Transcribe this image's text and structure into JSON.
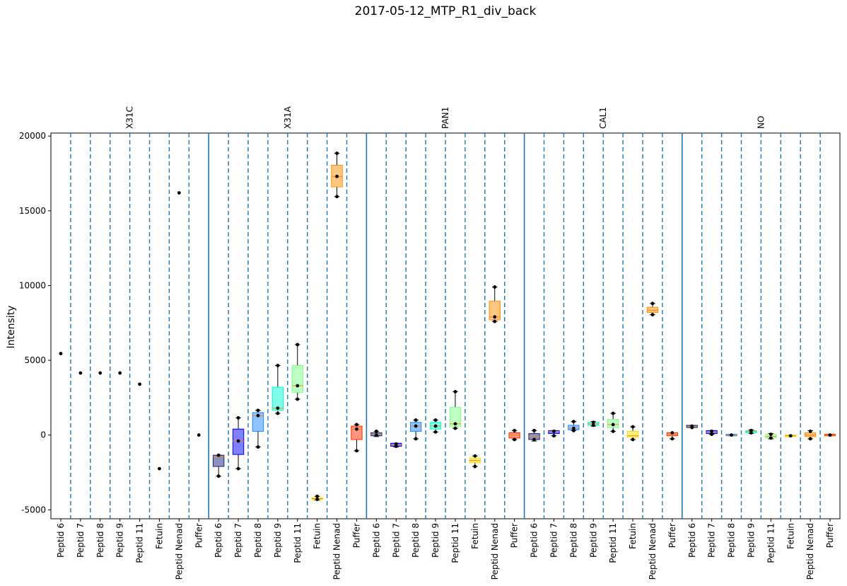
{
  "chart_data": {
    "type": "box",
    "title": "2017-05-12_MTP_R1_div_back",
    "ylabel": "Intensity",
    "xlabel": "",
    "ylim": [
      -5600,
      20200
    ],
    "yticks": [
      -5000,
      0,
      5000,
      10000,
      15000,
      20000
    ],
    "grid": false,
    "categories": [
      "Peptid 6",
      "Peptid 7",
      "Peptid 8",
      "Peptid 9",
      "Peptid 11",
      "Fetuin",
      "Peptid Nenad",
      "Puffer"
    ],
    "category_colors": [
      "#1a237e",
      "#0000ff",
      "#1e88ff",
      "#00ffd5",
      "#7dff8a",
      "#ffe000",
      "#ff9000",
      "#ff2a00"
    ],
    "groups": [
      {
        "name": "X31C",
        "boxes": [
          {
            "category": "Peptid 6",
            "q1": 5450,
            "median": 5450,
            "q3": 5450,
            "whislo": 5450,
            "whishi": 5450,
            "points": [
              5450
            ]
          },
          {
            "category": "Peptid 7",
            "q1": 4150,
            "median": 4150,
            "q3": 4150,
            "whislo": 4150,
            "whishi": 4150,
            "points": [
              4150
            ]
          },
          {
            "category": "Peptid 8",
            "q1": 4150,
            "median": 4150,
            "q3": 4150,
            "whislo": 4150,
            "whishi": 4150,
            "points": [
              4150
            ]
          },
          {
            "category": "Peptid 9",
            "q1": 4150,
            "median": 4150,
            "q3": 4150,
            "whislo": 4150,
            "whishi": 4150,
            "points": [
              4150
            ]
          },
          {
            "category": "Peptid 11",
            "q1": 3400,
            "median": 3400,
            "q3": 3400,
            "whislo": 3400,
            "whishi": 3400,
            "points": [
              3400
            ]
          },
          {
            "category": "Fetuin",
            "q1": -2250,
            "median": -2250,
            "q3": -2250,
            "whislo": -2250,
            "whishi": -2250,
            "points": [
              -2250
            ]
          },
          {
            "category": "Peptid Nenad",
            "q1": 16200,
            "median": 16200,
            "q3": 16200,
            "whislo": 16200,
            "whishi": 16200,
            "points": [
              16200
            ]
          },
          {
            "category": "Puffer",
            "q1": 0,
            "median": 0,
            "q3": 0,
            "whislo": 0,
            "whishi": 0,
            "points": [
              0
            ]
          }
        ]
      },
      {
        "name": "X31A",
        "boxes": [
          {
            "category": "Peptid 6",
            "q1": -2100,
            "median": -1450,
            "q3": -1350,
            "whislo": -2750,
            "whishi": -1350,
            "points": [
              -1350,
              -2750
            ]
          },
          {
            "category": "Peptid 7",
            "q1": -1300,
            "median": -400,
            "q3": 400,
            "whislo": -2250,
            "whishi": 1150,
            "points": [
              1150,
              -400,
              -2250
            ]
          },
          {
            "category": "Peptid 8",
            "q1": 250,
            "median": 1300,
            "q3": 1500,
            "whislo": -800,
            "whishi": 1650,
            "points": [
              1650,
              1300,
              -800
            ]
          },
          {
            "category": "Peptid 9",
            "q1": 1650,
            "median": 1800,
            "q3": 3200,
            "whislo": 1450,
            "whishi": 4650,
            "points": [
              4650,
              1800,
              1450
            ]
          },
          {
            "category": "Peptid 11",
            "q1": 2850,
            "median": 3300,
            "q3": 4650,
            "whislo": 2400,
            "whishi": 6050,
            "points": [
              6050,
              3300,
              2400
            ]
          },
          {
            "category": "Fetuin",
            "q1": -4300,
            "median": -4250,
            "q3": -4200,
            "whislo": -4350,
            "whishi": -4100,
            "points": [
              -4100,
              -4300
            ]
          },
          {
            "category": "Peptid Nenad",
            "q1": 16600,
            "median": 17300,
            "q3": 18050,
            "whislo": 15950,
            "whishi": 18850,
            "points": [
              18850,
              17300,
              15950
            ]
          },
          {
            "category": "Puffer",
            "q1": -300,
            "median": 400,
            "q3": 600,
            "whislo": -1050,
            "whishi": 700,
            "points": [
              700,
              400,
              -1050
            ]
          }
        ]
      },
      {
        "name": "PAN1",
        "boxes": [
          {
            "category": "Peptid 6",
            "q1": -50,
            "median": 50,
            "q3": 150,
            "whislo": -100,
            "whishi": 250,
            "points": [
              250,
              0
            ]
          },
          {
            "category": "Peptid 7",
            "q1": -750,
            "median": -650,
            "q3": -550,
            "whislo": -800,
            "whishi": -550,
            "points": [
              -600,
              -750
            ]
          },
          {
            "category": "Peptid 8",
            "q1": 250,
            "median": 600,
            "q3": 850,
            "whislo": -250,
            "whishi": 1000,
            "points": [
              1000,
              600,
              -250
            ]
          },
          {
            "category": "Peptid 9",
            "q1": 400,
            "median": 600,
            "q3": 850,
            "whislo": 200,
            "whishi": 1000,
            "points": [
              1000,
              600,
              200
            ]
          },
          {
            "category": "Peptid 11",
            "q1": 550,
            "median": 750,
            "q3": 1850,
            "whislo": 450,
            "whishi": 2900,
            "points": [
              2900,
              750,
              450
            ]
          },
          {
            "category": "Fetuin",
            "q1": -1850,
            "median": -1700,
            "q3": -1550,
            "whislo": -2100,
            "whishi": -1400,
            "points": [
              -1400,
              -2100
            ]
          },
          {
            "category": "Peptid Nenad",
            "q1": 7700,
            "median": 7900,
            "q3": 8950,
            "whislo": 7600,
            "whishi": 9900,
            "points": [
              9900,
              7900,
              7600
            ]
          },
          {
            "category": "Puffer",
            "q1": -200,
            "median": 0,
            "q3": 150,
            "whislo": -300,
            "whishi": 300,
            "points": [
              300,
              -300
            ]
          }
        ]
      },
      {
        "name": "CAL1",
        "boxes": [
          {
            "category": "Peptid 6",
            "q1": -300,
            "median": -100,
            "q3": 100,
            "whislo": -400,
            "whishi": 300,
            "points": [
              300,
              -300
            ]
          },
          {
            "category": "Peptid 7",
            "q1": 100,
            "median": 250,
            "q3": 300,
            "whislo": -50,
            "whishi": 300,
            "points": [
              250,
              -50
            ]
          },
          {
            "category": "Peptid 8",
            "q1": 350,
            "median": 450,
            "q3": 650,
            "whislo": 300,
            "whishi": 900,
            "points": [
              900,
              450,
              300
            ]
          },
          {
            "category": "Peptid 9",
            "q1": 650,
            "median": 750,
            "q3": 850,
            "whislo": 600,
            "whishi": 900,
            "points": [
              850,
              650
            ]
          },
          {
            "category": "Peptid 11",
            "q1": 500,
            "median": 700,
            "q3": 1050,
            "whislo": 250,
            "whishi": 1450,
            "points": [
              1450,
              700,
              250
            ]
          },
          {
            "category": "Fetuin",
            "q1": -150,
            "median": -50,
            "q3": 250,
            "whislo": -300,
            "whishi": 550,
            "points": [
              550,
              -300
            ]
          },
          {
            "category": "Peptid Nenad",
            "q1": 8200,
            "median": 8350,
            "q3": 8550,
            "whislo": 8050,
            "whishi": 8800,
            "points": [
              8800,
              8050
            ]
          },
          {
            "category": "Puffer",
            "q1": -50,
            "median": 50,
            "q3": 150,
            "whislo": -250,
            "whishi": 150,
            "points": [
              150,
              -250
            ]
          }
        ]
      },
      {
        "name": "NO",
        "boxes": [
          {
            "category": "Peptid 6",
            "q1": 500,
            "median": 550,
            "q3": 650,
            "whislo": 500,
            "whishi": 650,
            "points": [
              600,
              500
            ]
          },
          {
            "category": "Peptid 7",
            "q1": 100,
            "median": 200,
            "q3": 300,
            "whislo": 50,
            "whishi": 300,
            "points": [
              250,
              50
            ]
          },
          {
            "category": "Peptid 8",
            "q1": -50,
            "median": 0,
            "q3": 50,
            "whislo": -50,
            "whishi": 50,
            "points": [
              0
            ]
          },
          {
            "category": "Peptid 9",
            "q1": 150,
            "median": 250,
            "q3": 300,
            "whislo": 100,
            "whishi": 350,
            "points": [
              300,
              150
            ]
          },
          {
            "category": "Peptid 11",
            "q1": -200,
            "median": -100,
            "q3": 50,
            "whislo": -250,
            "whishi": 100,
            "points": [
              50,
              -200
            ]
          },
          {
            "category": "Fetuin",
            "q1": -100,
            "median": -50,
            "q3": 0,
            "whislo": -100,
            "whishi": 0,
            "points": [
              -50
            ]
          },
          {
            "category": "Peptid Nenad",
            "q1": -100,
            "median": 0,
            "q3": 150,
            "whislo": -250,
            "whishi": 300,
            "points": [
              250,
              -250
            ]
          },
          {
            "category": "Puffer",
            "q1": -50,
            "median": 0,
            "q3": 50,
            "whislo": -50,
            "whishi": 50,
            "points": [
              0
            ]
          }
        ]
      }
    ]
  }
}
